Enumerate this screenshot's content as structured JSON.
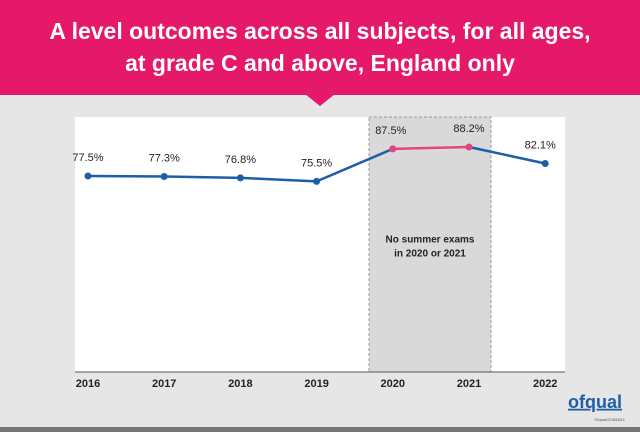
{
  "chart_data": {
    "type": "line",
    "title": [
      "A level outcomes across all subjects, for all ages,",
      "at grade C and above, England only"
    ],
    "categories": [
      "2016",
      "2017",
      "2018",
      "2019",
      "2020",
      "2021",
      "2022"
    ],
    "values": [
      77.5,
      77.3,
      76.8,
      75.5,
      87.5,
      88.2,
      82.1
    ],
    "value_labels": [
      "77.5%",
      "77.3%",
      "76.8%",
      "75.5%",
      "87.5%",
      "88.2%",
      "82.1%"
    ],
    "segment_colors": [
      "#1c5fa6",
      "#1c5fa6",
      "#1c5fa6",
      "#1c5fa6",
      "#e0457b",
      "#1c5fa6"
    ],
    "point_colors": [
      "#1c5fa6",
      "#1c5fa6",
      "#1c5fa6",
      "#1c5fa6",
      "#e0457b",
      "#e0457b",
      "#1c5fa6"
    ],
    "ylim": [
      0,
      100
    ],
    "annotation": [
      "No summer exams",
      "in 2020 or 2021"
    ],
    "logo": "ofqual",
    "reference": "Ofqual/22/6945/1"
  }
}
